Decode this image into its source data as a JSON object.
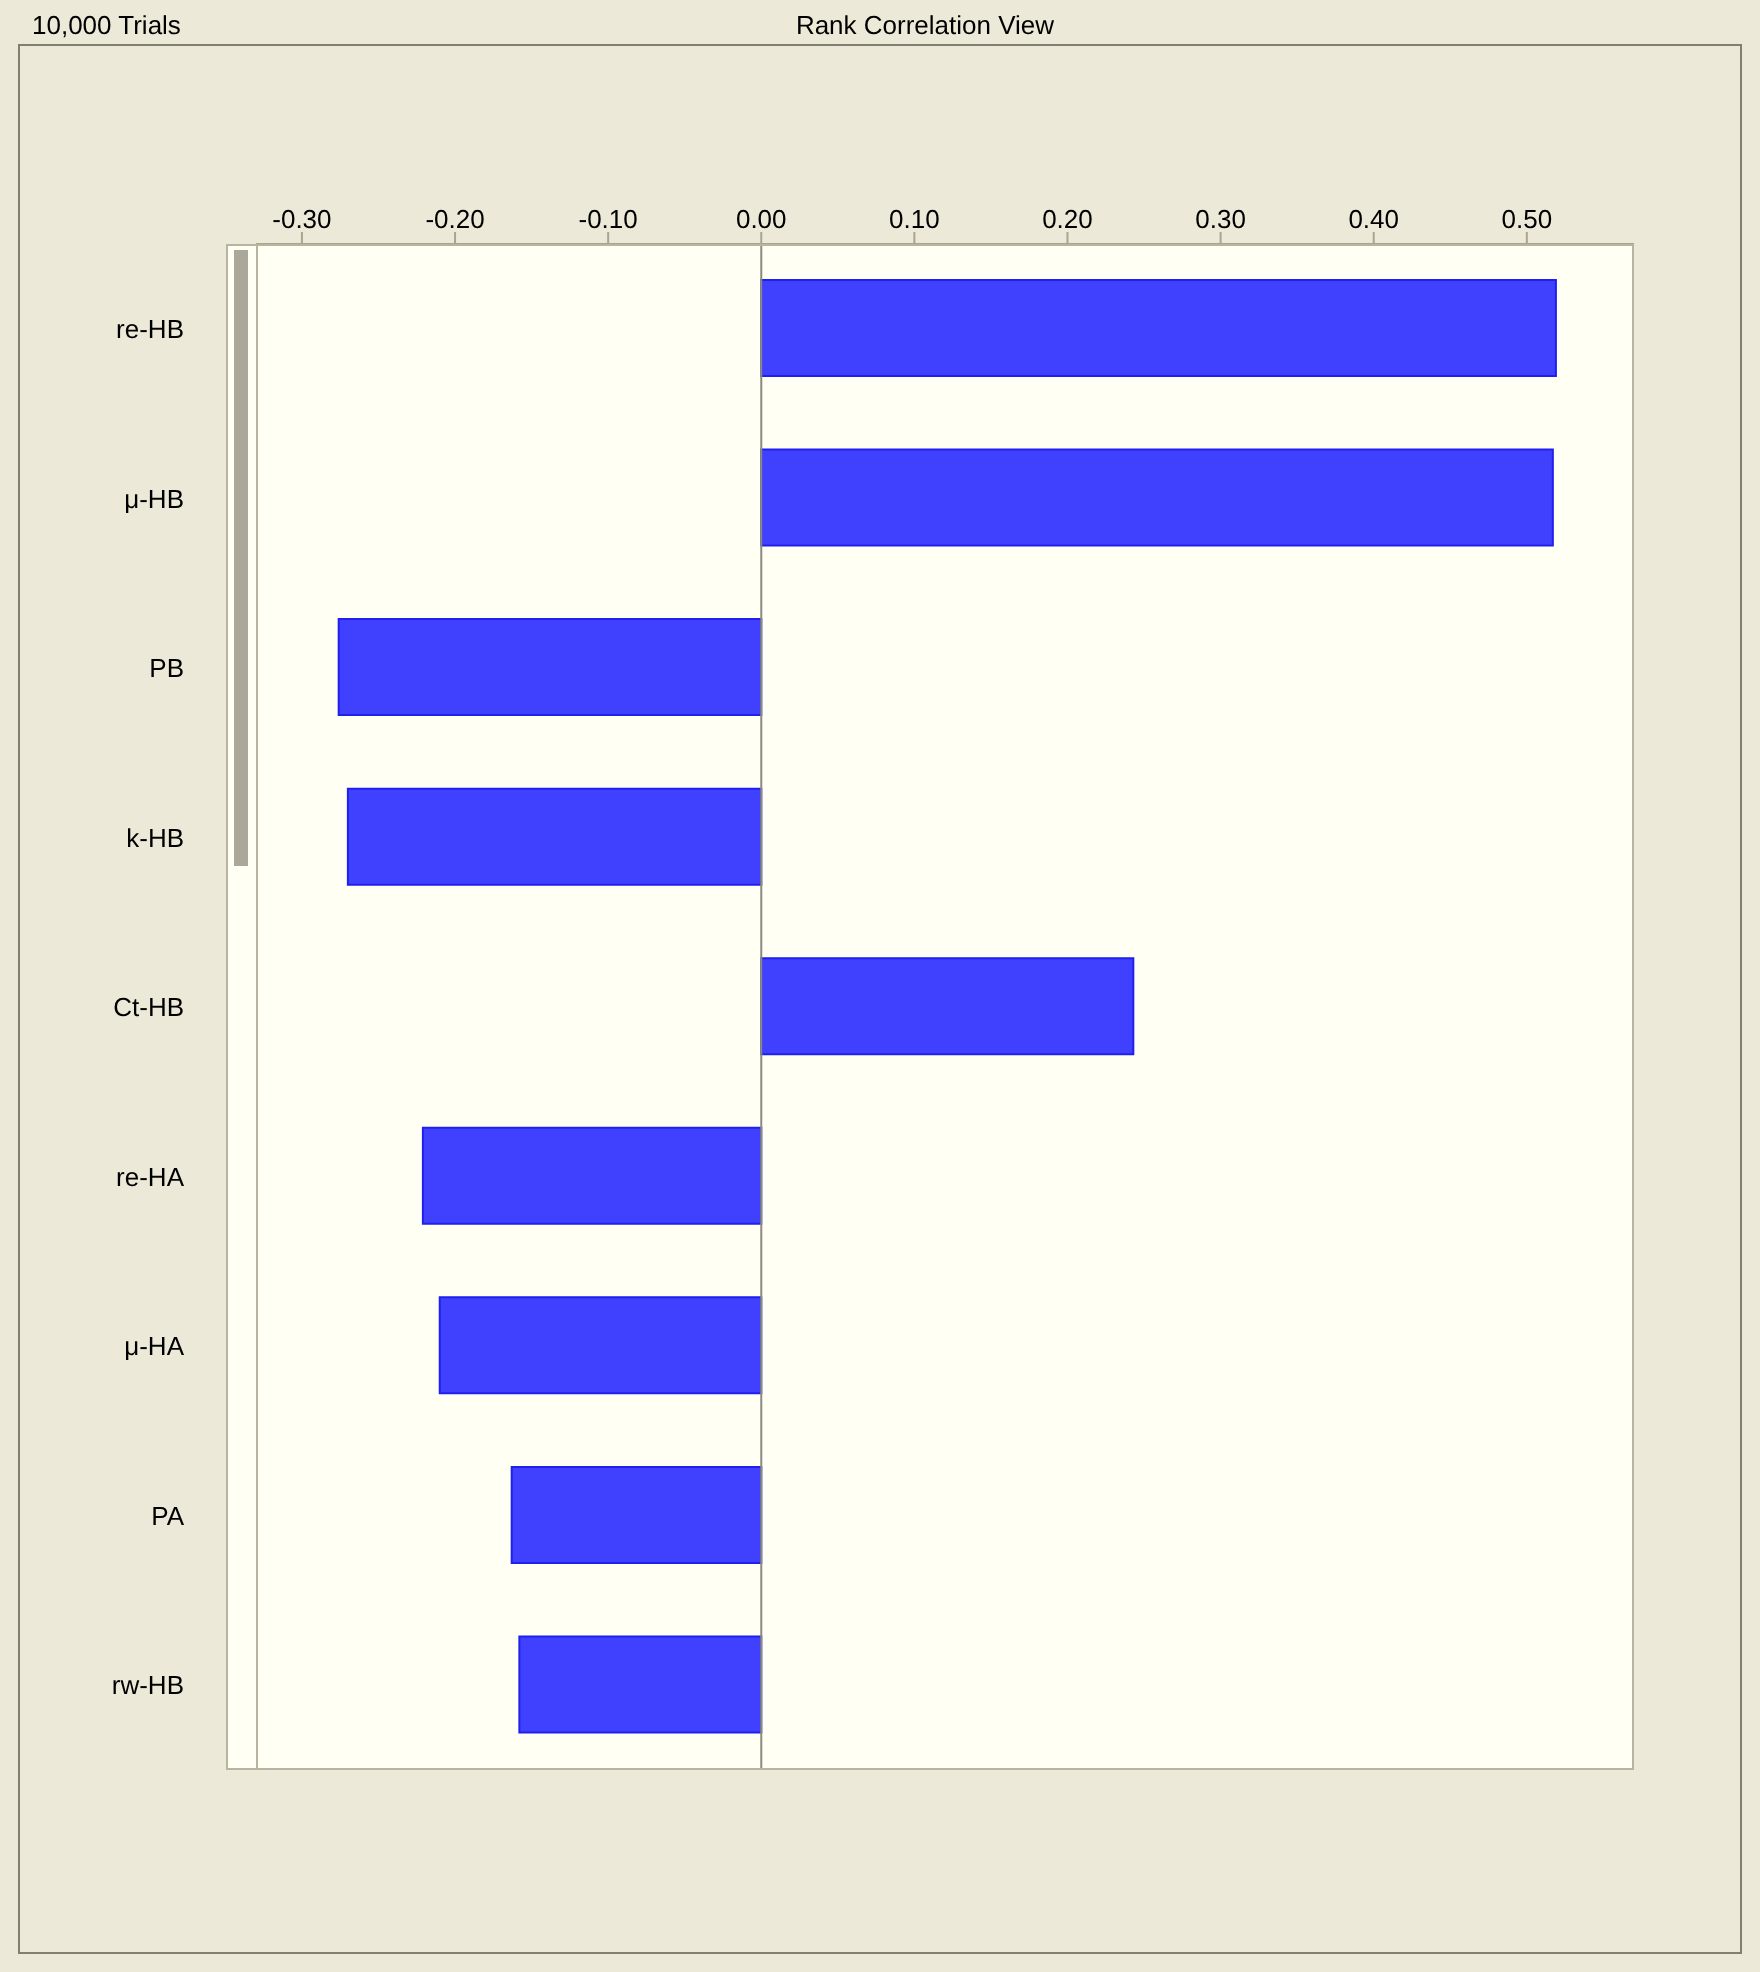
{
  "chart_data": {
    "type": "bar",
    "orientation": "horizontal",
    "title": "Rank Correlation View",
    "annotations": [
      "10,000 Trials"
    ],
    "categories": [
      "re-HB",
      "μ-HB",
      "PB",
      "k-HB",
      "Ct-HB",
      "re-HA",
      "μ-HA",
      "PA",
      "rw-HB"
    ],
    "values": [
      0.519,
      0.517,
      -0.276,
      -0.27,
      0.243,
      -0.221,
      -0.21,
      -0.163,
      -0.158
    ],
    "color": "#4040ff",
    "xlim": [
      -0.33,
      0.57
    ],
    "xticks": [
      {
        "value": -0.3,
        "label": "-0.30"
      },
      {
        "value": -0.2,
        "label": "-0.20"
      },
      {
        "value": -0.1,
        "label": "-0.10"
      },
      {
        "value": 0,
        "label": "0.00"
      },
      {
        "value": 0.1,
        "label": "0.10"
      },
      {
        "value": 0.2,
        "label": "0.20"
      },
      {
        "value": 0.3,
        "label": "0.30"
      },
      {
        "value": 0.4,
        "label": "0.40"
      },
      {
        "value": 0.5,
        "label": "0.50"
      }
    ],
    "ref_lines": [
      {
        "axis": "x",
        "value": 0,
        "color": "#8a8a80"
      }
    ],
    "grid": false,
    "legend": false
  }
}
